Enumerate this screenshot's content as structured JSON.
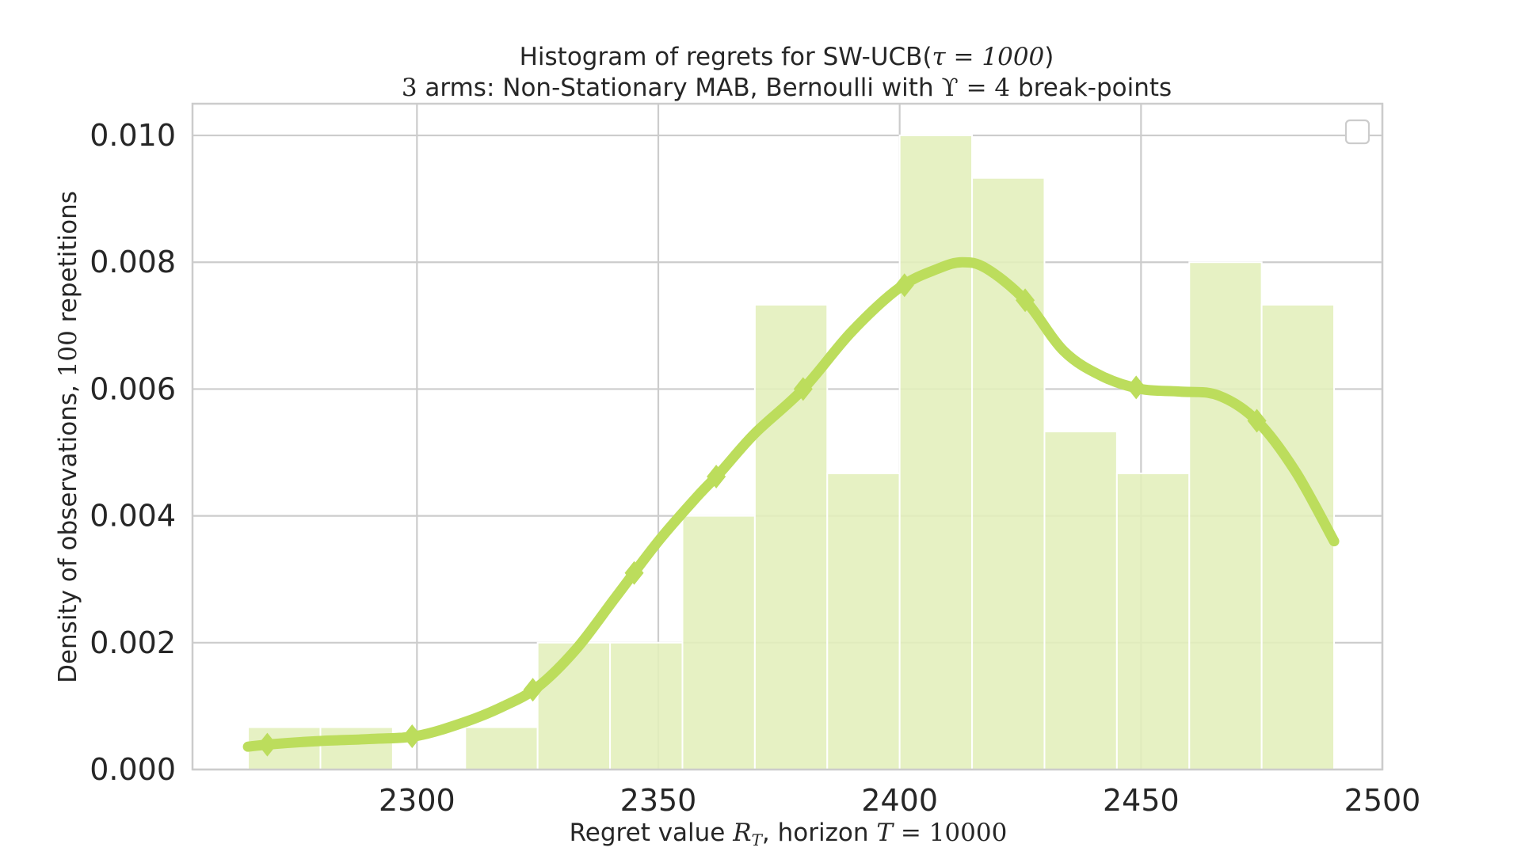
{
  "chart_data": {
    "type": "bar",
    "title_line1_prefix": "Histogram of regrets for SW-UCB(",
    "title_line1_math": "τ = 1000",
    "title_line1_suffix": ")",
    "title_line2_math": "3",
    "title_line2_mid": " arms: Non-Stationary MAB, Bernoulli with ",
    "title_line2_math2": "ϒ = 4",
    "title_line2_suffix": " break-points",
    "xlabel_prefix": "Regret value ",
    "xlabel_math": "R",
    "xlabel_sub": "T",
    "xlabel_mid": ", horizon ",
    "xlabel_math2": "T",
    "xlabel_math2_value": " = 10000",
    "ylabel_prefix": "Density of observations, ",
    "ylabel_math": "100",
    "ylabel_suffix": " repetitions",
    "xlim": [
      2253.5,
      2500
    ],
    "ylim": [
      0,
      0.0105
    ],
    "xticks": [
      2300,
      2350,
      2400,
      2450,
      2500
    ],
    "xtick_labels": [
      "2300",
      "2350",
      "2400",
      "2450",
      "2500"
    ],
    "yticks": [
      0,
      0.002,
      0.004,
      0.006,
      0.008,
      0.01
    ],
    "ytick_labels": [
      "0.000",
      "0.002",
      "0.004",
      "0.006",
      "0.008",
      "0.010"
    ],
    "grid": true,
    "legend": "top-right, empty",
    "bar_color": "#e2efbb",
    "kde_color": "#bcdd5c",
    "bin_width": 15,
    "bins": [
      {
        "x0": 2265,
        "x1": 2280,
        "density": 0.000667
      },
      {
        "x0": 2280,
        "x1": 2295,
        "density": 0.000667
      },
      {
        "x0": 2295,
        "x1": 2310,
        "density": 0.0
      },
      {
        "x0": 2310,
        "x1": 2325,
        "density": 0.000667
      },
      {
        "x0": 2325,
        "x1": 2340,
        "density": 0.002
      },
      {
        "x0": 2340,
        "x1": 2355,
        "density": 0.002
      },
      {
        "x0": 2355,
        "x1": 2370,
        "density": 0.004
      },
      {
        "x0": 2370,
        "x1": 2385,
        "density": 0.00733
      },
      {
        "x0": 2385,
        "x1": 2400,
        "density": 0.00467
      },
      {
        "x0": 2400,
        "x1": 2415,
        "density": 0.01
      },
      {
        "x0": 2415,
        "x1": 2430,
        "density": 0.00933
      },
      {
        "x0": 2430,
        "x1": 2445,
        "density": 0.00533
      },
      {
        "x0": 2445,
        "x1": 2460,
        "density": 0.00467
      },
      {
        "x0": 2460,
        "x1": 2475,
        "density": 0.008
      },
      {
        "x0": 2475,
        "x1": 2490,
        "density": 0.00733
      }
    ],
    "kde": {
      "x": [
        2265,
        2270,
        2280,
        2290,
        2300,
        2310,
        2318,
        2325,
        2333,
        2341,
        2350,
        2358,
        2363,
        2370,
        2380,
        2390,
        2400,
        2408,
        2413,
        2418,
        2426,
        2434,
        2442,
        2450,
        2458,
        2466,
        2474,
        2482,
        2490
      ],
      "y": [
        0.00036,
        0.0004,
        0.00045,
        0.00048,
        0.00053,
        0.00075,
        0.001,
        0.0013,
        0.0019,
        0.0027,
        0.0036,
        0.0043,
        0.0047,
        0.0053,
        0.006,
        0.0069,
        0.0076,
        0.0079,
        0.008,
        0.0079,
        0.0074,
        0.0066,
        0.0062,
        0.006,
        0.00596,
        0.0059,
        0.0055,
        0.0047,
        0.0036
      ]
    },
    "kde_markers_x": [
      2269,
      2299,
      2324,
      2345,
      2362,
      2380,
      2401,
      2426,
      2449,
      2474
    ]
  }
}
